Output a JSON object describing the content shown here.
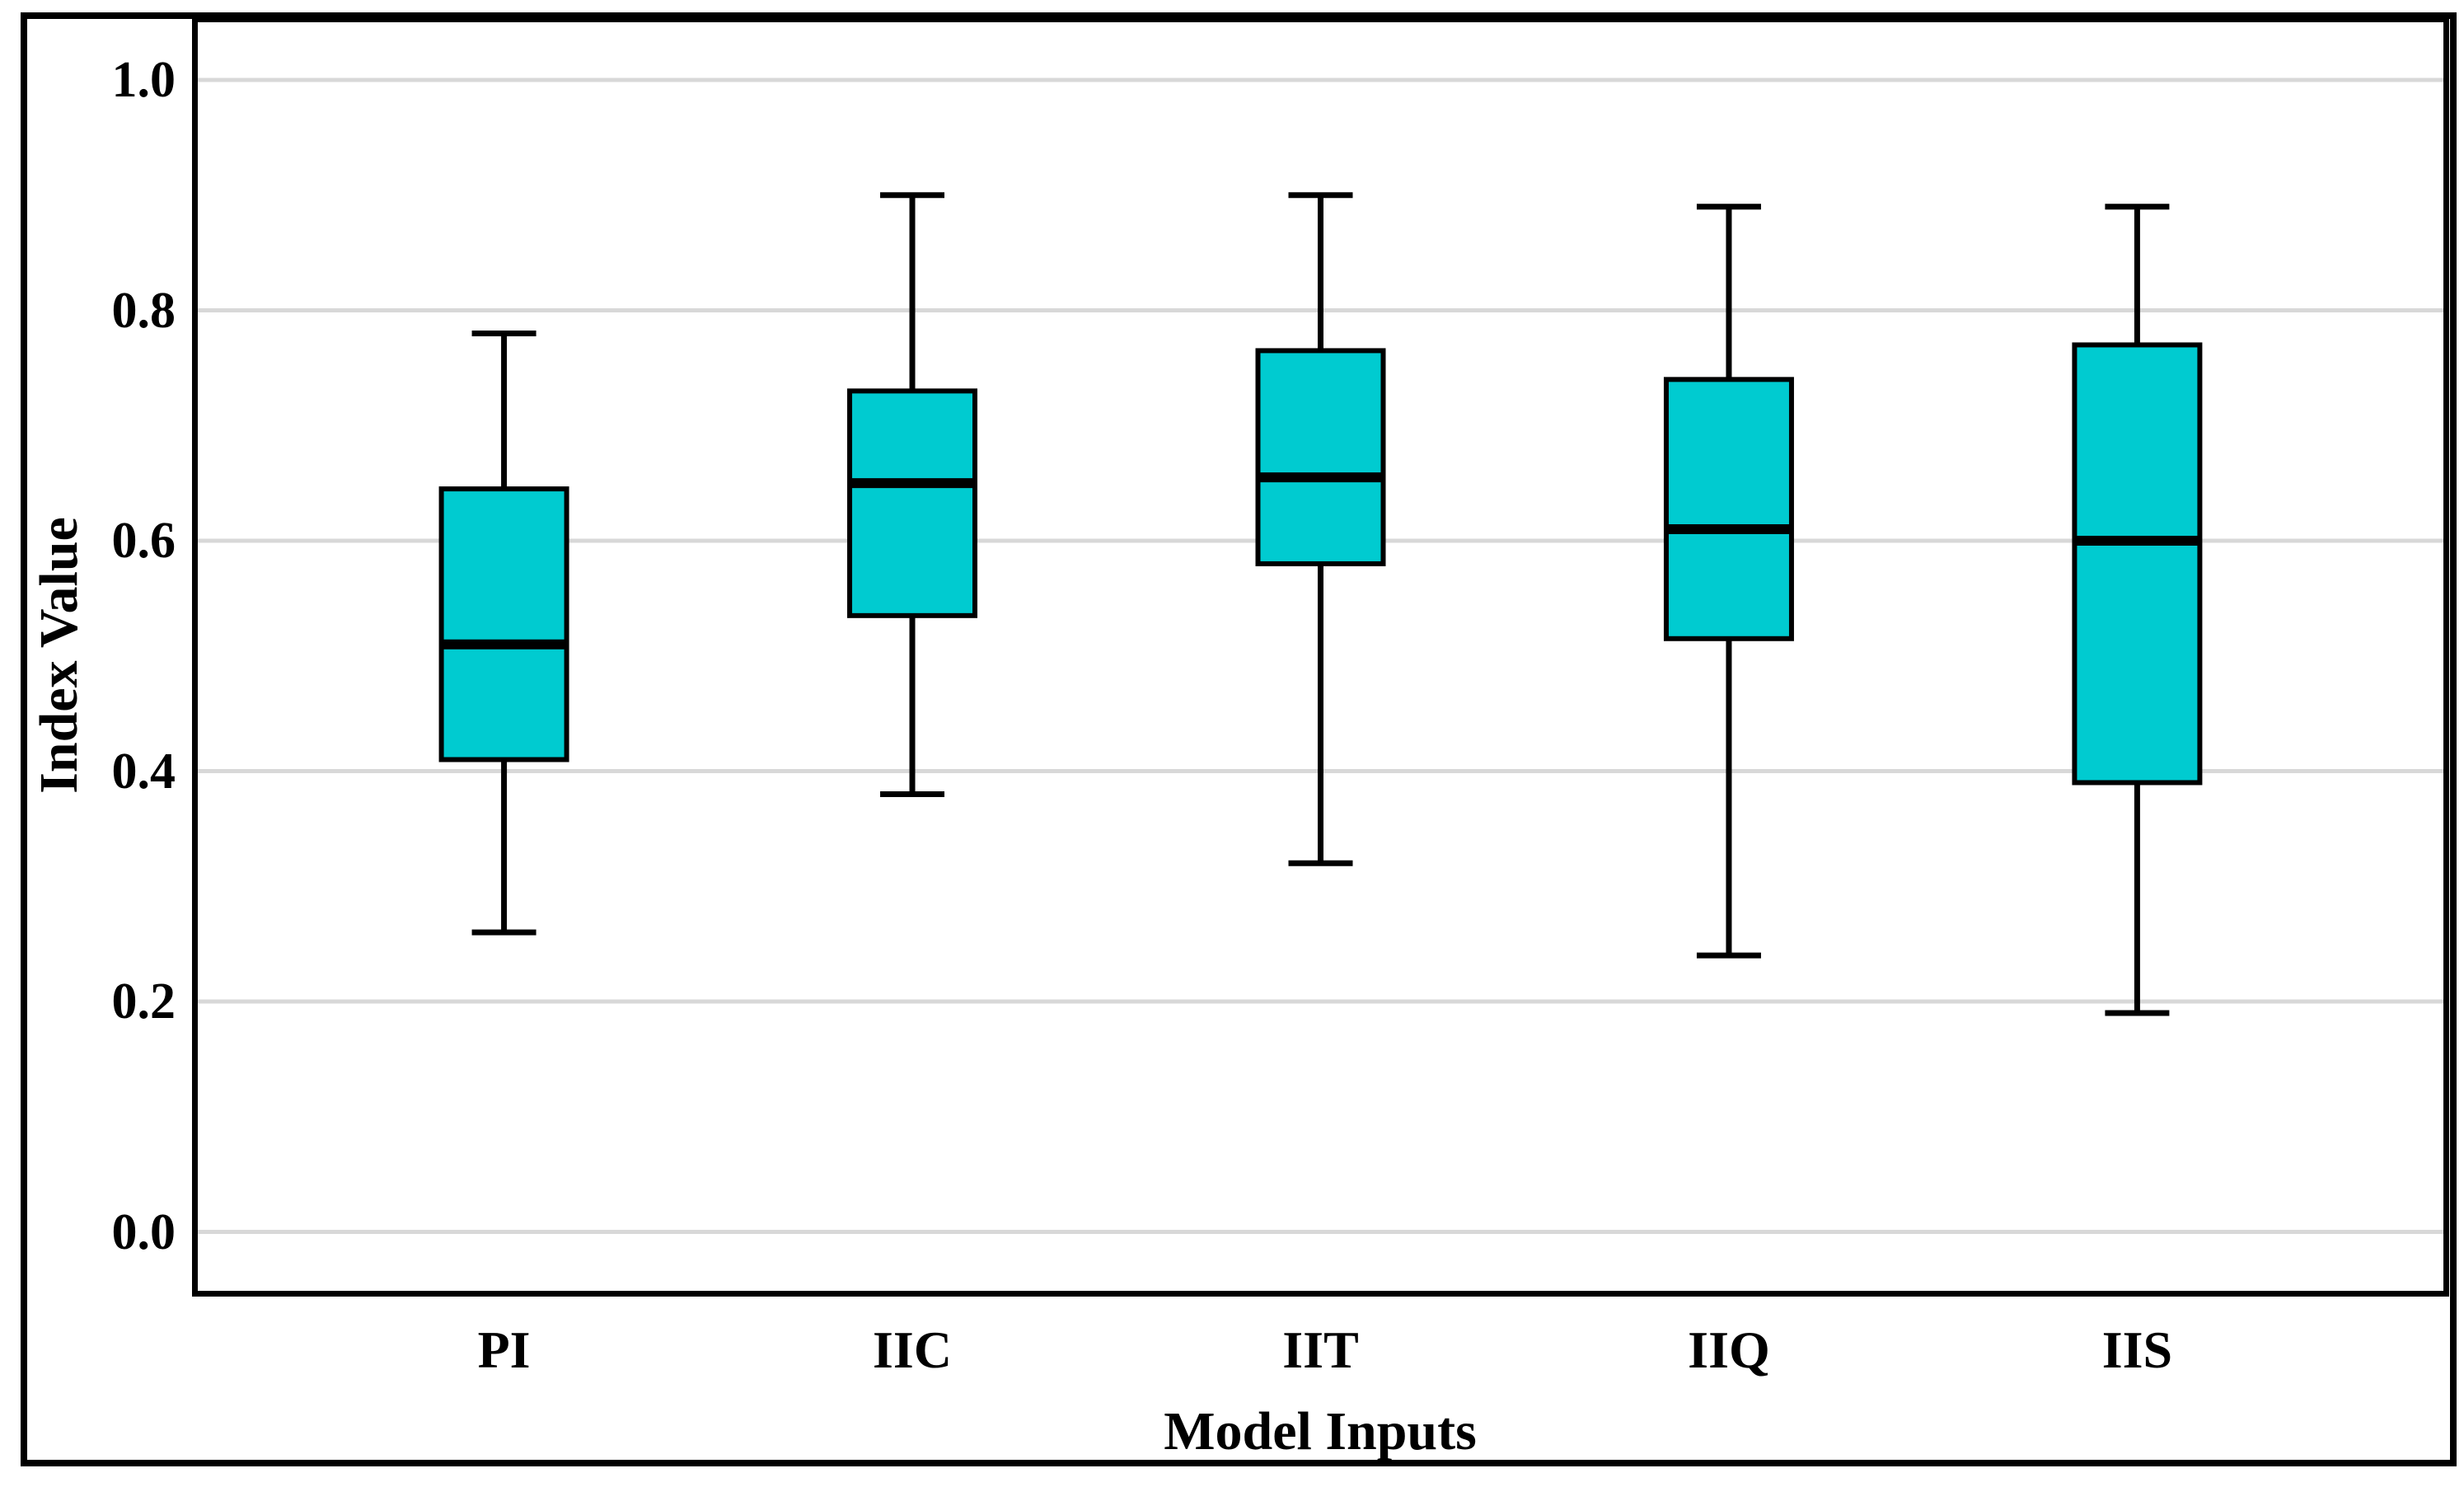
{
  "chart_data": {
    "type": "boxplot",
    "title": "",
    "xlabel": "Model Inputs",
    "ylabel": "Index Value",
    "categories": [
      "PI",
      "IIC",
      "IIT",
      "IIQ",
      "IIS"
    ],
    "series": [
      {
        "name": "PI",
        "min": 0.26,
        "q1": 0.41,
        "median": 0.51,
        "q3": 0.645,
        "max": 0.78
      },
      {
        "name": "IIC",
        "min": 0.38,
        "q1": 0.535,
        "median": 0.65,
        "q3": 0.73,
        "max": 0.9
      },
      {
        "name": "IIT",
        "min": 0.32,
        "q1": 0.58,
        "median": 0.655,
        "q3": 0.765,
        "max": 0.9
      },
      {
        "name": "IIQ",
        "min": 0.24,
        "q1": 0.515,
        "median": 0.61,
        "q3": 0.74,
        "max": 0.89
      },
      {
        "name": "IIS",
        "min": 0.19,
        "q1": 0.39,
        "median": 0.6,
        "q3": 0.77,
        "max": 0.89
      }
    ],
    "y_ticks": [
      {
        "value": 1.0,
        "label": "1.0"
      },
      {
        "value": 0.8,
        "label": "0.8"
      },
      {
        "value": 0.6,
        "label": "0.6"
      },
      {
        "value": 0.4,
        "label": "0.4"
      },
      {
        "value": 0.2,
        "label": "0.2"
      },
      {
        "value": 0.0,
        "label": "0.0"
      }
    ],
    "ylim": [
      0.0,
      1.0
    ],
    "grid": true,
    "legend": "none",
    "colors": {
      "box_fill": "#00CBD0",
      "box_border": "#000000",
      "median": "#000000",
      "whisker": "#000000",
      "gridline": "#D8D8D8",
      "frame": "#000000",
      "background": "#FFFFFF"
    }
  }
}
